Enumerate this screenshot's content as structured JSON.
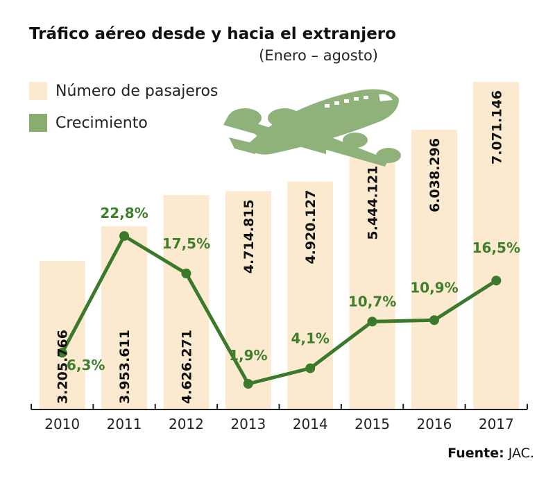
{
  "chart_data": {
    "type": "bar",
    "title": "Tráfico aéreo desde y hacia el extranjero",
    "subtitle": "(Enero – agosto)",
    "categories": [
      "2010",
      "2011",
      "2012",
      "2013",
      "2014",
      "2015",
      "2016",
      "2017"
    ],
    "series": [
      {
        "name": "Número de pasajeros",
        "type": "bar",
        "values": [
          3205766,
          3953611,
          4626271,
          4714815,
          4920127,
          5444121,
          6038296,
          7071146
        ],
        "labels": [
          "3.205.766",
          "3.953.611",
          "4.626.271",
          "4.714.815",
          "4.920.127",
          "5.444.121",
          "6.038.296",
          "7.071.146"
        ],
        "color": "#fbe9d0"
      },
      {
        "name": "Crecimiento",
        "type": "line",
        "values": [
          6.3,
          22.8,
          17.5,
          1.9,
          4.1,
          10.7,
          10.9,
          16.5
        ],
        "labels": [
          "6,3%",
          "22,8%",
          "17,5%",
          "1,9%",
          "4,1%",
          "10,7%",
          "10,9%",
          "16,5%"
        ],
        "color": "#3b7a2a"
      }
    ],
    "legend": [
      {
        "label": "Número de pasajeros",
        "color": "#fbe9d0"
      },
      {
        "label": "Crecimiento",
        "color": "#8aad6f"
      }
    ],
    "legend_position": "top-left",
    "grid": false,
    "source_label": "Fuente:",
    "source_value": "JAC.",
    "decoration": "airplane-icon",
    "decoration_color": "#8fb27a"
  }
}
